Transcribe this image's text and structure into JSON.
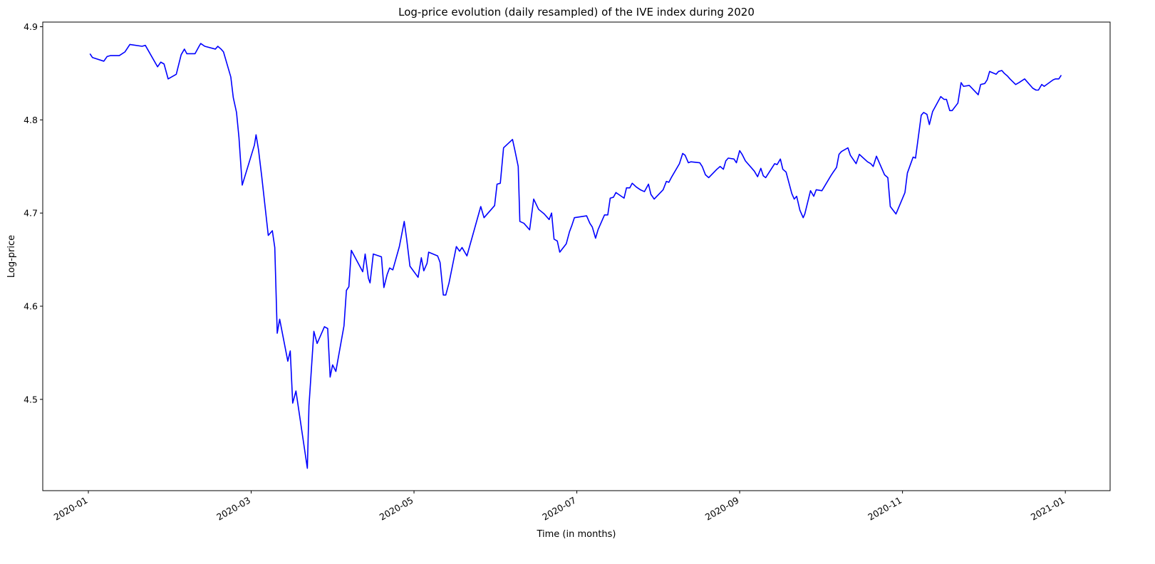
{
  "chart_data": {
    "type": "line",
    "title": "Log-price evolution (daily resampled) of the IVE index during 2020",
    "x_label": "Time (in months)",
    "y_label": "Log-price",
    "color": "#0000ff",
    "grid": false,
    "xlim": [
      -0.56,
      12.55
    ],
    "ylim": [
      4.402,
      4.905
    ],
    "xticks": [
      {
        "value": 0,
        "label": "2020-01"
      },
      {
        "value": 2,
        "label": "2020-03"
      },
      {
        "value": 4,
        "label": "2020-05"
      },
      {
        "value": 6,
        "label": "2020-07"
      },
      {
        "value": 8,
        "label": "2020-09"
      },
      {
        "value": 10,
        "label": "2020-11"
      },
      {
        "value": 12,
        "label": "2021-01"
      }
    ],
    "yticks": [
      4.5,
      4.6,
      4.7,
      4.8,
      4.9
    ],
    "x": [
      0.02,
      0.05,
      0.19,
      0.23,
      0.27,
      0.38,
      0.45,
      0.51,
      0.66,
      0.7,
      0.85,
      0.89,
      0.93,
      0.98,
      1.08,
      1.14,
      1.18,
      1.21,
      1.31,
      1.36,
      1.38,
      1.43,
      1.56,
      1.59,
      1.63,
      1.66,
      1.75,
      1.78,
      1.82,
      1.85,
      1.89,
      2.04,
      2.06,
      2.09,
      2.13,
      2.21,
      2.26,
      2.29,
      2.32,
      2.35,
      2.45,
      2.48,
      2.51,
      2.55,
      2.69,
      2.71,
      2.77,
      2.81,
      2.9,
      2.94,
      2.97,
      3.0,
      3.04,
      3.14,
      3.17,
      3.2,
      3.23,
      3.37,
      3.4,
      3.44,
      3.46,
      3.5,
      3.6,
      3.63,
      3.67,
      3.7,
      3.74,
      3.82,
      3.88,
      3.91,
      3.95,
      4.05,
      4.09,
      4.12,
      4.16,
      4.18,
      4.29,
      4.32,
      4.36,
      4.39,
      4.43,
      4.52,
      4.56,
      4.59,
      4.65,
      4.82,
      4.86,
      4.99,
      5.02,
      5.06,
      5.1,
      5.21,
      5.24,
      5.28,
      5.3,
      5.35,
      5.42,
      5.47,
      5.53,
      5.6,
      5.66,
      5.69,
      5.72,
      5.76,
      5.79,
      5.87,
      5.91,
      5.94,
      5.97,
      6.12,
      6.16,
      6.19,
      6.23,
      6.26,
      6.34,
      6.38,
      6.41,
      6.45,
      6.48,
      6.58,
      6.61,
      6.65,
      6.68,
      6.73,
      6.78,
      6.83,
      6.88,
      6.91,
      6.95,
      7.06,
      7.1,
      7.13,
      7.16,
      7.26,
      7.3,
      7.33,
      7.37,
      7.4,
      7.51,
      7.54,
      7.58,
      7.62,
      7.72,
      7.76,
      7.8,
      7.83,
      7.86,
      7.93,
      7.96,
      8.0,
      8.03,
      8.07,
      8.18,
      8.22,
      8.26,
      8.29,
      8.32,
      8.43,
      8.46,
      8.5,
      8.53,
      8.57,
      8.64,
      8.67,
      8.7,
      8.74,
      8.78,
      8.8,
      8.87,
      8.91,
      8.94,
      9.01,
      9.12,
      9.15,
      9.19,
      9.22,
      9.25,
      9.33,
      9.36,
      9.43,
      9.47,
      9.57,
      9.61,
      9.64,
      9.68,
      9.78,
      9.82,
      9.85,
      9.92,
      10.03,
      10.06,
      10.13,
      10.16,
      10.23,
      10.26,
      10.3,
      10.33,
      10.37,
      10.47,
      10.51,
      10.54,
      10.58,
      10.61,
      10.68,
      10.72,
      10.75,
      10.82,
      10.93,
      10.96,
      11.01,
      11.04,
      11.07,
      11.15,
      11.18,
      11.22,
      11.25,
      11.29,
      11.32,
      11.39,
      11.43,
      11.5,
      11.6,
      11.64,
      11.67,
      11.71,
      11.74,
      11.85,
      11.88,
      11.92,
      11.95
    ],
    "values": [
      4.871,
      4.867,
      4.863,
      4.868,
      4.869,
      4.869,
      4.873,
      4.881,
      4.879,
      4.88,
      4.857,
      4.862,
      4.86,
      4.844,
      4.849,
      4.87,
      4.876,
      4.871,
      4.871,
      4.879,
      4.882,
      4.879,
      4.876,
      4.879,
      4.876,
      4.873,
      4.846,
      4.824,
      4.808,
      4.781,
      4.73,
      4.773,
      4.784,
      4.768,
      4.739,
      4.676,
      4.681,
      4.663,
      4.571,
      4.586,
      4.541,
      4.552,
      4.496,
      4.509,
      4.426,
      4.493,
      4.573,
      4.56,
      4.578,
      4.576,
      4.524,
      4.537,
      4.53,
      4.579,
      4.617,
      4.621,
      4.66,
      4.637,
      4.656,
      4.63,
      4.625,
      4.656,
      4.653,
      4.62,
      4.634,
      4.641,
      4.639,
      4.664,
      4.691,
      4.672,
      4.643,
      4.631,
      4.652,
      4.638,
      4.646,
      4.658,
      4.654,
      4.647,
      4.612,
      4.612,
      4.625,
      4.664,
      4.659,
      4.663,
      4.654,
      4.707,
      4.695,
      4.708,
      4.731,
      4.732,
      4.77,
      4.779,
      4.767,
      4.75,
      4.691,
      4.689,
      4.682,
      4.715,
      4.704,
      4.699,
      4.693,
      4.7,
      4.672,
      4.67,
      4.658,
      4.667,
      4.68,
      4.687,
      4.695,
      4.697,
      4.689,
      4.685,
      4.673,
      4.682,
      4.698,
      4.698,
      4.716,
      4.717,
      4.722,
      4.716,
      4.727,
      4.727,
      4.732,
      4.728,
      4.725,
      4.723,
      4.731,
      4.72,
      4.715,
      4.725,
      4.734,
      4.733,
      4.738,
      4.753,
      4.764,
      4.762,
      4.754,
      4.755,
      4.754,
      4.75,
      4.741,
      4.738,
      4.747,
      4.75,
      4.747,
      4.756,
      4.759,
      4.758,
      4.754,
      4.767,
      4.763,
      4.756,
      4.745,
      4.739,
      4.748,
      4.74,
      4.738,
      4.753,
      4.752,
      4.758,
      4.747,
      4.744,
      4.721,
      4.715,
      4.718,
      4.703,
      4.695,
      4.699,
      4.724,
      4.718,
      4.725,
      4.724,
      4.74,
      4.744,
      4.749,
      4.763,
      4.766,
      4.77,
      4.762,
      4.753,
      4.763,
      4.755,
      4.753,
      4.75,
      4.761,
      4.741,
      4.738,
      4.707,
      4.699,
      4.722,
      4.743,
      4.76,
      4.759,
      4.805,
      4.808,
      4.806,
      4.795,
      4.809,
      4.825,
      4.822,
      4.822,
      4.81,
      4.81,
      4.818,
      4.84,
      4.836,
      4.837,
      4.827,
      4.838,
      4.839,
      4.843,
      4.852,
      4.849,
      4.852,
      4.853,
      4.85,
      4.847,
      4.844,
      4.838,
      4.84,
      4.844,
      4.834,
      4.832,
      4.832,
      4.838,
      4.836,
      4.843,
      4.844,
      4.844,
      4.848
    ]
  }
}
